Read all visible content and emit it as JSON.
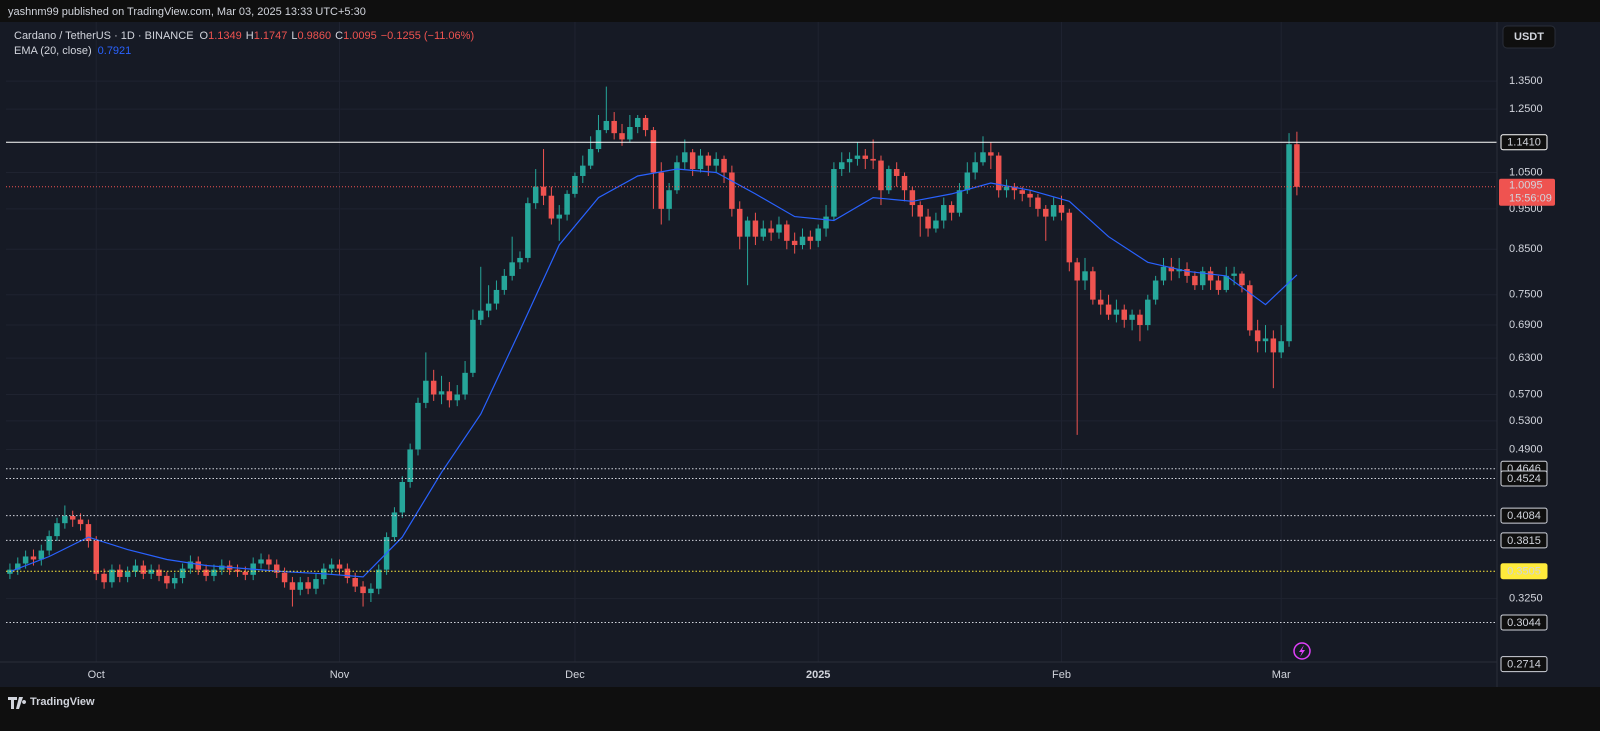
{
  "header": {
    "publisher": "yashnm99 published on TradingView.com, Mar 03, 2025 13:33 UTC+5:30",
    "currency": "USDT"
  },
  "footer": {
    "brand": "TradingView"
  },
  "chart_data": {
    "type": "candlestick",
    "legend": {
      "symbol": "Cardano / TetherUS · 1D · BINANCE",
      "ohlc": [
        {
          "key": "O",
          "value": "1.1349"
        },
        {
          "key": "H",
          "value": "1.1747"
        },
        {
          "key": "L",
          "value": "0.9860"
        },
        {
          "key": "C",
          "value": "1.0095"
        }
      ],
      "change": "−0.1255 (−11.06%)",
      "indicator_value": "0.7921"
    },
    "up_color": "#26a69a",
    "down_color": "#ef5350",
    "log_scale": true,
    "grid": true,
    "xlim": [
      -0.5,
      189.5
    ],
    "ylim": [
      0.273,
      1.58
    ],
    "xticks": [
      {
        "value": 11,
        "label": "Oct"
      },
      {
        "value": 42,
        "label": "Nov"
      },
      {
        "value": 72,
        "label": "Dec"
      },
      {
        "value": 103,
        "label": "2025"
      },
      {
        "value": 134,
        "label": "Feb"
      },
      {
        "value": 162,
        "label": "Mar"
      }
    ],
    "yticks": [
      {
        "value": 1.35,
        "label": "1.3500"
      },
      {
        "value": 1.25,
        "label": "1.2500"
      },
      {
        "value": 1.05,
        "label": "1.0500"
      },
      {
        "value": 0.95,
        "label": "0.9500"
      },
      {
        "value": 0.85,
        "label": "0.8500"
      },
      {
        "value": 0.75,
        "label": "0.7500"
      },
      {
        "value": 0.69,
        "label": "0.6900"
      },
      {
        "value": 0.63,
        "label": "0.6300"
      },
      {
        "value": 0.57,
        "label": "0.5700"
      },
      {
        "value": 0.53,
        "label": "0.5300"
      },
      {
        "value": 0.49,
        "label": "0.4900"
      },
      {
        "value": 0.325,
        "label": "0.3250"
      }
    ],
    "open": [
      0.348,
      0.352,
      0.358,
      0.365,
      0.362,
      0.371,
      0.386,
      0.4,
      0.408,
      0.404,
      0.399,
      0.381,
      0.348,
      0.34,
      0.352,
      0.345,
      0.35,
      0.356,
      0.348,
      0.352,
      0.346,
      0.339,
      0.344,
      0.353,
      0.36,
      0.352,
      0.346,
      0.352,
      0.356,
      0.352,
      0.35,
      0.347,
      0.358,
      0.362,
      0.357,
      0.349,
      0.34,
      0.333,
      0.34,
      0.334,
      0.343,
      0.353,
      0.357,
      0.353,
      0.344,
      0.336,
      0.33,
      0.334,
      0.352,
      0.385,
      0.412,
      0.448,
      0.49,
      0.557,
      0.592,
      0.57,
      0.575,
      0.561,
      0.57,
      0.605,
      0.7,
      0.718,
      0.732,
      0.76,
      0.79,
      0.82,
      0.83,
      0.965,
      1.01,
      0.985,
      0.925,
      0.935,
      0.99,
      1.04,
      1.07,
      1.12,
      1.18,
      1.21,
      1.17,
      1.15,
      1.19,
      1.22,
      1.18,
      1.05,
      0.95,
      1.0,
      1.08,
      1.11,
      1.06,
      1.1,
      1.07,
      1.09,
      1.05,
      0.95,
      0.88,
      0.92,
      0.88,
      0.9,
      0.89,
      0.91,
      0.87,
      0.86,
      0.88,
      0.87,
      0.9,
      0.93,
      1.06,
      1.08,
      1.09,
      1.1,
      1.09,
      1.085,
      1.0,
      1.06,
      1.04,
      1.0,
      0.96,
      0.93,
      0.9,
      0.92,
      0.96,
      0.94,
      1.0,
      1.05,
      1.08,
      1.11,
      1.1,
      1.0,
      1.01,
      1.0,
      0.99,
      0.98,
      0.95,
      0.93,
      0.96,
      0.94,
      0.82,
      0.78,
      0.8,
      0.74,
      0.73,
      0.71,
      0.72,
      0.7,
      0.71,
      0.69,
      0.74,
      0.78,
      0.81,
      0.8,
      0.805,
      0.79,
      0.77,
      0.8,
      0.78,
      0.76,
      0.79,
      0.795,
      0.77,
      0.68,
      0.66,
      0.665,
      0.64,
      0.66,
      1.1349
    ],
    "high": [
      0.358,
      0.364,
      0.371,
      0.372,
      0.377,
      0.392,
      0.406,
      0.42,
      0.414,
      0.411,
      0.404,
      0.386,
      0.353,
      0.357,
      0.357,
      0.355,
      0.362,
      0.361,
      0.357,
      0.357,
      0.35,
      0.349,
      0.358,
      0.366,
      0.365,
      0.357,
      0.357,
      0.362,
      0.361,
      0.357,
      0.355,
      0.364,
      0.368,
      0.367,
      0.362,
      0.354,
      0.345,
      0.345,
      0.345,
      0.348,
      0.358,
      0.363,
      0.362,
      0.358,
      0.349,
      0.341,
      0.339,
      0.357,
      0.39,
      0.418,
      0.455,
      0.498,
      0.565,
      0.64,
      0.61,
      0.6,
      0.59,
      0.585,
      0.625,
      0.72,
      0.81,
      0.77,
      0.78,
      0.805,
      0.88,
      0.845,
      0.98,
      1.06,
      1.12,
      1.01,
      0.96,
      1.0,
      1.05,
      1.1,
      1.16,
      1.23,
      1.33,
      1.24,
      1.2,
      1.23,
      1.23,
      1.23,
      1.19,
      1.08,
      1.02,
      1.1,
      1.15,
      1.12,
      1.12,
      1.11,
      1.11,
      1.1,
      1.07,
      0.97,
      0.93,
      0.94,
      0.92,
      0.92,
      0.93,
      0.92,
      0.89,
      0.9,
      0.895,
      0.91,
      0.96,
      1.08,
      1.11,
      1.11,
      1.14,
      1.12,
      1.15,
      1.1,
      1.07,
      1.08,
      1.05,
      1.01,
      0.97,
      0.95,
      0.94,
      0.98,
      0.97,
      1.02,
      1.08,
      1.11,
      1.16,
      1.14,
      1.11,
      1.03,
      1.02,
      1.01,
      1.0,
      0.99,
      0.96,
      0.98,
      0.985,
      0.95,
      0.83,
      0.83,
      0.81,
      0.76,
      0.75,
      0.74,
      0.73,
      0.72,
      0.72,
      0.75,
      0.79,
      0.83,
      0.83,
      0.83,
      0.82,
      0.8,
      0.81,
      0.81,
      0.79,
      0.81,
      0.81,
      0.8,
      0.78,
      0.7,
      0.69,
      0.68,
      0.69,
      1.17,
      1.1747
    ],
    "low": [
      0.343,
      0.347,
      0.353,
      0.356,
      0.356,
      0.366,
      0.381,
      0.394,
      0.396,
      0.392,
      0.374,
      0.342,
      0.334,
      0.335,
      0.34,
      0.34,
      0.345,
      0.343,
      0.343,
      0.341,
      0.334,
      0.334,
      0.339,
      0.348,
      0.347,
      0.341,
      0.341,
      0.347,
      0.347,
      0.345,
      0.342,
      0.342,
      0.353,
      0.352,
      0.344,
      0.335,
      0.318,
      0.328,
      0.329,
      0.329,
      0.338,
      0.348,
      0.347,
      0.339,
      0.331,
      0.318,
      0.322,
      0.329,
      0.347,
      0.38,
      0.406,
      0.441,
      0.482,
      0.549,
      0.56,
      0.555,
      0.55,
      0.552,
      0.562,
      0.598,
      0.69,
      0.705,
      0.72,
      0.75,
      0.78,
      0.805,
      0.82,
      0.95,
      0.96,
      0.91,
      0.87,
      0.92,
      0.98,
      1.02,
      1.06,
      1.11,
      1.17,
      1.15,
      1.13,
      1.14,
      1.17,
      1.16,
      0.95,
      0.91,
      0.92,
      0.99,
      1.06,
      1.04,
      1.05,
      1.04,
      1.05,
      1.02,
      0.93,
      0.85,
      0.77,
      0.86,
      0.87,
      0.87,
      0.875,
      0.85,
      0.84,
      0.85,
      0.85,
      0.855,
      0.88,
      0.92,
      1.04,
      1.05,
      1.07,
      1.06,
      1.06,
      0.96,
      0.99,
      1.01,
      0.97,
      0.93,
      0.88,
      0.88,
      0.89,
      0.9,
      0.92,
      0.93,
      0.99,
      1.03,
      1.07,
      1.06,
      0.98,
      0.98,
      0.975,
      0.97,
      0.955,
      0.93,
      0.87,
      0.92,
      0.92,
      0.8,
      0.51,
      0.76,
      0.73,
      0.71,
      0.7,
      0.695,
      0.685,
      0.68,
      0.66,
      0.68,
      0.73,
      0.77,
      0.78,
      0.785,
      0.775,
      0.76,
      0.76,
      0.76,
      0.75,
      0.755,
      0.77,
      0.755,
      0.67,
      0.64,
      0.64,
      0.58,
      0.63,
      0.65,
      0.986
    ],
    "close": [
      0.352,
      0.358,
      0.365,
      0.362,
      0.371,
      0.386,
      0.4,
      0.408,
      0.404,
      0.399,
      0.381,
      0.348,
      0.34,
      0.352,
      0.345,
      0.35,
      0.356,
      0.348,
      0.352,
      0.346,
      0.339,
      0.344,
      0.353,
      0.36,
      0.352,
      0.346,
      0.352,
      0.356,
      0.352,
      0.35,
      0.347,
      0.358,
      0.362,
      0.357,
      0.349,
      0.34,
      0.333,
      0.34,
      0.334,
      0.343,
      0.353,
      0.357,
      0.353,
      0.344,
      0.336,
      0.33,
      0.334,
      0.352,
      0.385,
      0.412,
      0.448,
      0.49,
      0.557,
      0.592,
      0.57,
      0.575,
      0.561,
      0.57,
      0.605,
      0.7,
      0.718,
      0.732,
      0.76,
      0.79,
      0.82,
      0.83,
      0.965,
      1.01,
      0.985,
      0.925,
      0.935,
      0.99,
      1.04,
      1.07,
      1.12,
      1.18,
      1.21,
      1.17,
      1.15,
      1.19,
      1.22,
      1.18,
      1.05,
      0.95,
      1.0,
      1.08,
      1.11,
      1.06,
      1.1,
      1.07,
      1.09,
      1.05,
      0.95,
      0.88,
      0.92,
      0.88,
      0.9,
      0.89,
      0.91,
      0.87,
      0.86,
      0.88,
      0.87,
      0.9,
      0.93,
      1.06,
      1.08,
      1.09,
      1.1,
      1.09,
      1.085,
      1.0,
      1.06,
      1.04,
      1.0,
      0.96,
      0.93,
      0.9,
      0.92,
      0.96,
      0.94,
      1.0,
      1.05,
      1.08,
      1.11,
      1.1,
      1.0,
      1.01,
      1.0,
      0.99,
      0.98,
      0.95,
      0.93,
      0.96,
      0.94,
      0.82,
      0.78,
      0.8,
      0.74,
      0.73,
      0.71,
      0.72,
      0.7,
      0.71,
      0.69,
      0.74,
      0.78,
      0.81,
      0.8,
      0.805,
      0.79,
      0.77,
      0.8,
      0.78,
      0.76,
      0.79,
      0.795,
      0.77,
      0.68,
      0.66,
      0.665,
      0.64,
      0.66,
      1.1349,
      1.0095
    ],
    "ema": {
      "name": "EMA (20, close)",
      "color": "#2962ff",
      "x": [
        0,
        5,
        10,
        15,
        20,
        25,
        30,
        35,
        40,
        45,
        50,
        55,
        60,
        65,
        70,
        75,
        80,
        85,
        90,
        95,
        100,
        105,
        110,
        115,
        120,
        125,
        130,
        135,
        140,
        145,
        150,
        155,
        160,
        164
      ],
      "values": [
        0.35,
        0.365,
        0.385,
        0.372,
        0.362,
        0.356,
        0.353,
        0.35,
        0.348,
        0.345,
        0.385,
        0.46,
        0.54,
        0.68,
        0.86,
        0.98,
        1.04,
        1.06,
        1.05,
        0.99,
        0.93,
        0.92,
        0.98,
        0.97,
        0.99,
        1.02,
        1.0,
        0.97,
        0.88,
        0.82,
        0.8,
        0.79,
        0.73,
        0.7921
      ]
    },
    "levels": [
      {
        "value": 1.141,
        "label": "1.1410",
        "color": "#ffffff",
        "style": "solid"
      },
      {
        "value": 0.4646,
        "label": "0.4646",
        "color": "#d1d4dc",
        "style": "dotted"
      },
      {
        "value": 0.4524,
        "label": "0.4524",
        "color": "#d1d4dc",
        "style": "dotted"
      },
      {
        "value": 0.4084,
        "label": "0.4084",
        "color": "#d1d4dc",
        "style": "dotted"
      },
      {
        "value": 0.3815,
        "label": "0.3815",
        "color": "#d1d4dc",
        "style": "dotted"
      },
      {
        "value": 0.3505,
        "label": "0.3505",
        "color": "#ffeb3b",
        "style": "dotted"
      },
      {
        "value": 0.3044,
        "label": "0.3044",
        "color": "#d1d4dc",
        "style": "dotted"
      },
      {
        "value": 0.2714,
        "label": "0.2714",
        "color": "#d1d4dc",
        "style": "none"
      }
    ],
    "last_price": {
      "value": 1.0095,
      "label": "1.0095",
      "countdown": "15:56:09",
      "color": "#ef5350"
    }
  }
}
